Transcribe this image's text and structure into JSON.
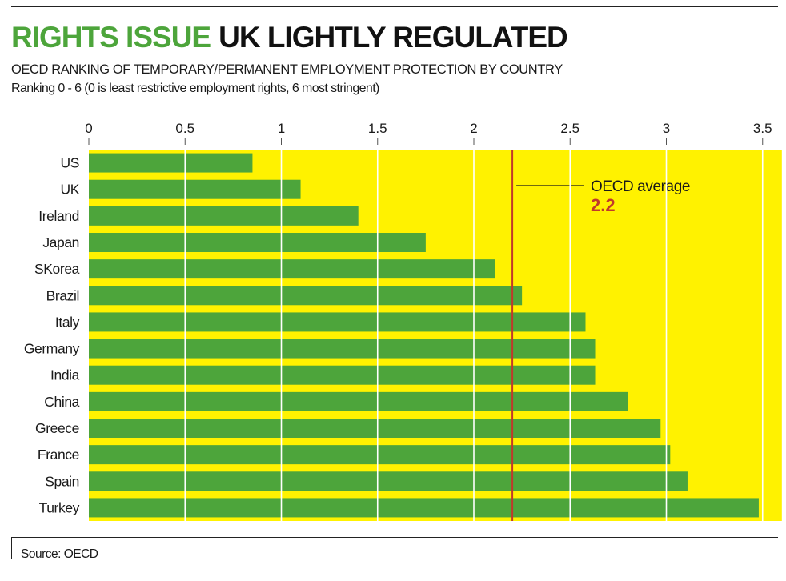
{
  "header": {
    "title_green": "RIGHTS ISSUE",
    "title_black": "UK LIGHTLY REGULATED",
    "subtitle": "OECD RANKING OF TEMPORARY/PERMANENT EMPLOYMENT PROTECTION BY COUNTRY",
    "subtitle2": "Ranking 0 - 6 (0 is least restrictive employment rights, 6 most stringent)"
  },
  "footer": {
    "source": "Source: OECD"
  },
  "colors": {
    "bar": "#4da53b",
    "background": "#fff200",
    "average_line": "#c0392b",
    "average_value": "#c0392b",
    "title_green": "#4da53b"
  },
  "chart_data": {
    "type": "bar",
    "orientation": "horizontal",
    "categories": [
      "US",
      "UK",
      "Ireland",
      "Japan",
      "SKorea",
      "Brazil",
      "Italy",
      "Germany",
      "India",
      "China",
      "Greece",
      "France",
      "Spain",
      "Turkey"
    ],
    "values": [
      0.85,
      1.1,
      1.4,
      1.75,
      2.11,
      2.25,
      2.58,
      2.63,
      2.63,
      2.8,
      2.97,
      3.02,
      3.11,
      3.48
    ],
    "xlim": [
      0,
      3.6
    ],
    "xticks": [
      "0",
      "0.5",
      "1",
      "1.5",
      "2",
      "2.5",
      "3",
      "3.5"
    ],
    "xtick_values": [
      0,
      0.5,
      1,
      1.5,
      2,
      2.5,
      3,
      3.5
    ],
    "axis_position": "top",
    "grid": true,
    "reference_line": {
      "label": "OECD average",
      "value": 2.2,
      "value_label": "2.2"
    }
  }
}
